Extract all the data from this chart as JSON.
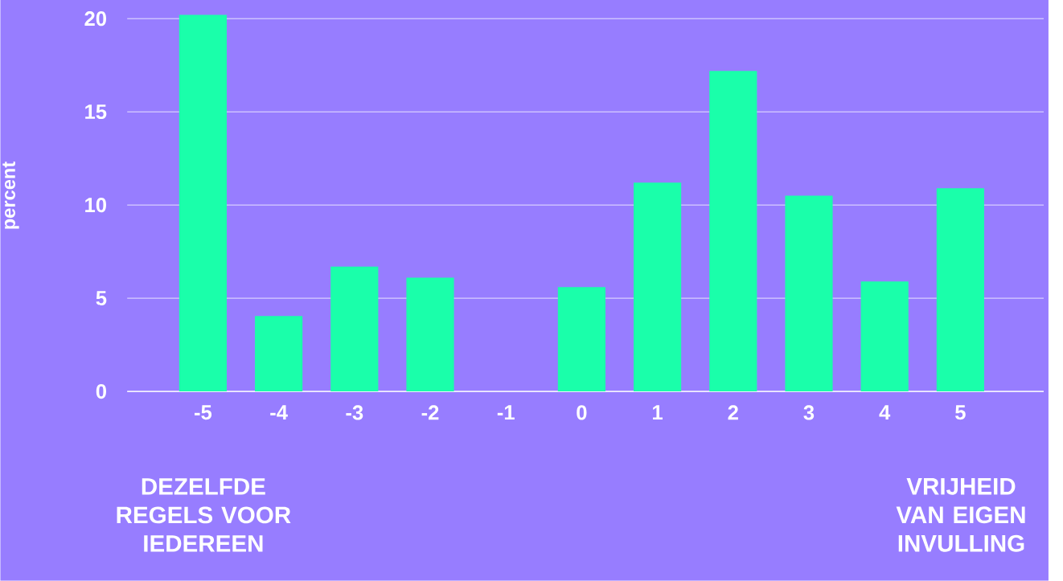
{
  "chart_data": {
    "type": "bar",
    "ylabel": "percent",
    "categories": [
      "-5",
      "-4",
      "-3",
      "-2",
      "-1",
      "0",
      "1",
      "2",
      "3",
      "4",
      "5"
    ],
    "values": [
      20.2,
      4.05,
      6.7,
      6.1,
      0,
      5.6,
      11.2,
      17.2,
      10.5,
      5.9,
      10.9
    ],
    "color": "#1affaa",
    "ylim": [
      0,
      21
    ],
    "yticks": [
      0,
      5,
      10,
      15,
      20
    ],
    "grid": "y",
    "annotations": [
      "DEZELFDE REGELS VOOR IEDEREEN",
      "VRIJHEID VAN EIGEN INVULLING"
    ]
  }
}
